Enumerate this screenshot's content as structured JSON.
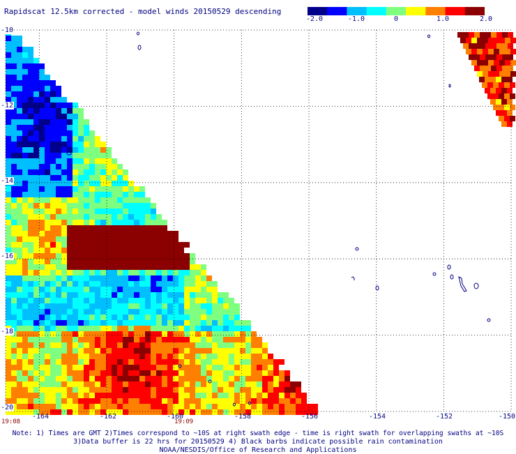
{
  "title": "Rapidscat 12.5km corrected - model winds 20150529 descending",
  "colorbar": {
    "ticks": [
      "-2.0",
      "-1.0",
      "0",
      "1.0",
      "2.0"
    ],
    "colors": [
      "#00008b",
      "#0000ff",
      "#00bfff",
      "#00ffff",
      "#7fff7f",
      "#ffff00",
      "#ff8000",
      "#ff0000",
      "#8b0000"
    ]
  },
  "map": {
    "lat_labels": [
      "-10",
      "-12",
      "-14",
      "-16",
      "-18",
      "-20"
    ],
    "lon_labels": [
      "-164",
      "-162",
      "-160",
      "-158",
      "-156",
      "-154",
      "-152",
      "-150"
    ],
    "lat_range": [
      -20,
      -10
    ],
    "lon_range": [
      -165,
      -150
    ],
    "grid": true,
    "land_outline_color": "#000080"
  },
  "time_labels": [
    "19:08",
    "19:09"
  ],
  "notes": [
    "Note: 1) Times are GMT 2)Times correspond to ~10S at right swath edge - time is right swath for overlapping swaths at ~10S",
    "3)Data buffer is 22 hrs for 20150529 4) Black barbs indicate possible rain contamination",
    "NOAA/NESDIS/Office of Research and Applications"
  ]
}
